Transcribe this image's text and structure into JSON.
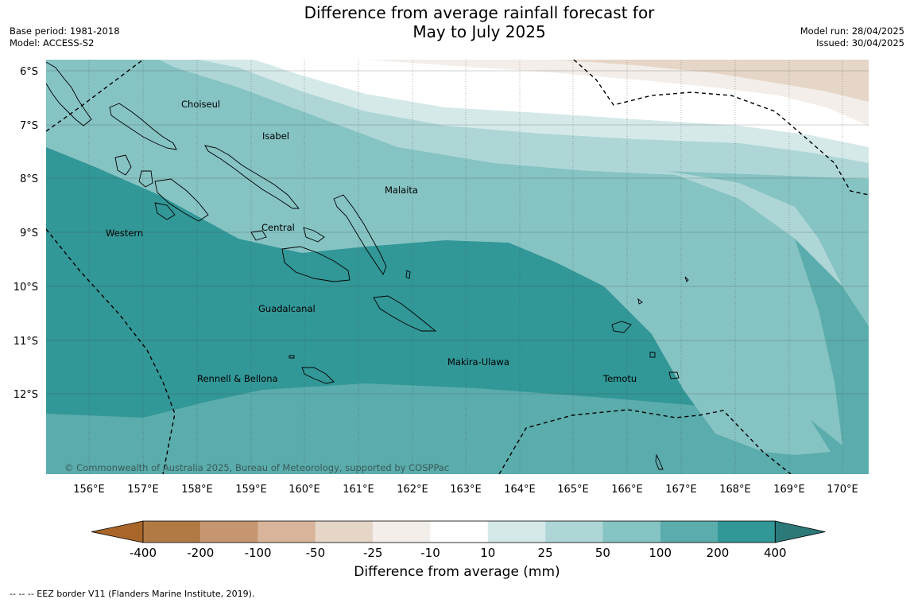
{
  "title_line1": "Difference from average rainfall forecast for",
  "title_line2": "May to July 2025",
  "meta_left": {
    "base_period": "Base period: 1981-2018",
    "model": "Model: ACCESS-S2"
  },
  "meta_right": {
    "model_run": "Model run: 28/04/2025",
    "issued": "Issued: 30/04/2025"
  },
  "lat_labels": [
    "6°S",
    "7°S",
    "8°S",
    "9°S",
    "10°S",
    "11°S",
    "12°S"
  ],
  "lon_labels": [
    "156°E",
    "157°E",
    "158°E",
    "159°E",
    "160°E",
    "161°E",
    "162°E",
    "163°E",
    "164°E",
    "165°E",
    "166°E",
    "167°E",
    "168°E",
    "169°E",
    "170°E"
  ],
  "regions": {
    "choiseul": "Choiseul",
    "isabel": "Isabel",
    "malaita": "Malaita",
    "western": "Western",
    "central": "Central",
    "guadalcanal": "Guadalcanal",
    "makira": "Makira-Ulawa",
    "rennell": "Rennell & Bellona",
    "temotu": "Temotu"
  },
  "copyright": "© Commonwealth of Australia 2025, Bureau of Meteorology, supported by COSPPac",
  "colorbar": {
    "labels": [
      "-400",
      "-200",
      "-100",
      "-50",
      "-25",
      "-10",
      "10",
      "25",
      "50",
      "100",
      "200",
      "400"
    ],
    "colors": [
      "#a8662a",
      "#b17a45",
      "#c69670",
      "#d8b59a",
      "#e6d6c8",
      "#f3eee9",
      "#ffffff",
      "#d5e9e9",
      "#aed6d6",
      "#86c3c3",
      "#5bacac",
      "#329797",
      "#2b7a79"
    ],
    "title": "Difference from average (mm)"
  },
  "eez_note": "--  --  -- EEZ border V11 (Flanders Marine Institute, 2019)."
}
